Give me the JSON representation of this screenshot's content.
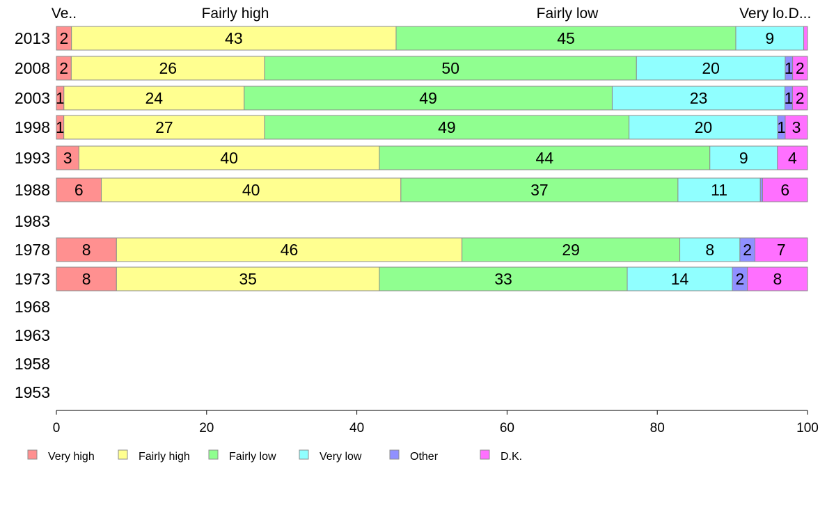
{
  "chart_data": {
    "type": "bar",
    "orientation": "horizontal",
    "stacked": true,
    "years": [
      "2013",
      "2008",
      "2003",
      "1998",
      "1993",
      "1988",
      "1983",
      "1978",
      "1973",
      "1968",
      "1963",
      "1958",
      "1953"
    ],
    "xlim": [
      0,
      100
    ],
    "xticks": [
      "0",
      "20",
      "40",
      "60",
      "80",
      "100"
    ],
    "top_labels": [
      "Ve..",
      "Fairly high",
      "Fairly low",
      "Very lo..",
      "D..."
    ],
    "legend_position": "bottom",
    "grid": false,
    "series": [
      {
        "name": "Very high",
        "color": "#ff9090",
        "values": [
          2,
          2,
          1,
          1,
          3,
          6,
          null,
          8,
          8,
          null,
          null,
          null,
          null
        ]
      },
      {
        "name": "Fairly high",
        "color": "#ffff90",
        "values": [
          43,
          26,
          24,
          27,
          40,
          40,
          null,
          46,
          35,
          null,
          null,
          null,
          null
        ]
      },
      {
        "name": "Fairly low",
        "color": "#90ff90",
        "values": [
          45,
          50,
          49,
          49,
          44,
          37,
          null,
          29,
          33,
          null,
          null,
          null,
          null
        ]
      },
      {
        "name": "Very low",
        "color": "#90ffff",
        "values": [
          9,
          20,
          23,
          20,
          9,
          11,
          null,
          8,
          14,
          null,
          null,
          null,
          null
        ]
      },
      {
        "name": "Other",
        "color": "#9090ff",
        "values": [
          0,
          1,
          1,
          1,
          0,
          0.3,
          null,
          2,
          2,
          null,
          null,
          null,
          null
        ]
      },
      {
        "name": "D.K.",
        "color": "#ff70ff",
        "values": [
          0.5,
          2,
          2,
          3,
          4,
          6,
          null,
          7,
          8,
          null,
          null,
          null,
          null
        ]
      }
    ],
    "labels": [
      [
        "2",
        "43",
        "45",
        "9",
        "",
        ""
      ],
      [
        "2",
        "26",
        "50",
        "20",
        "1",
        "2"
      ],
      [
        "1",
        "24",
        "49",
        "23",
        "1",
        "2"
      ],
      [
        "1",
        "27",
        "49",
        "20",
        "1",
        "3"
      ],
      [
        "3",
        "40",
        "44",
        "9",
        "",
        "4"
      ],
      [
        "6",
        "40",
        "37",
        "11",
        "",
        "6"
      ],
      [
        "",
        "",
        "",
        "",
        "",
        ""
      ],
      [
        "8",
        "46",
        "29",
        "8",
        "2",
        "7"
      ],
      [
        "8",
        "35",
        "33",
        "14",
        "2",
        "8"
      ],
      [
        "",
        "",
        "",
        "",
        "",
        ""
      ],
      [
        "",
        "",
        "",
        "",
        "",
        ""
      ],
      [
        "",
        "",
        "",
        "",
        "",
        ""
      ],
      [
        "",
        "",
        "",
        "",
        "",
        ""
      ]
    ]
  }
}
